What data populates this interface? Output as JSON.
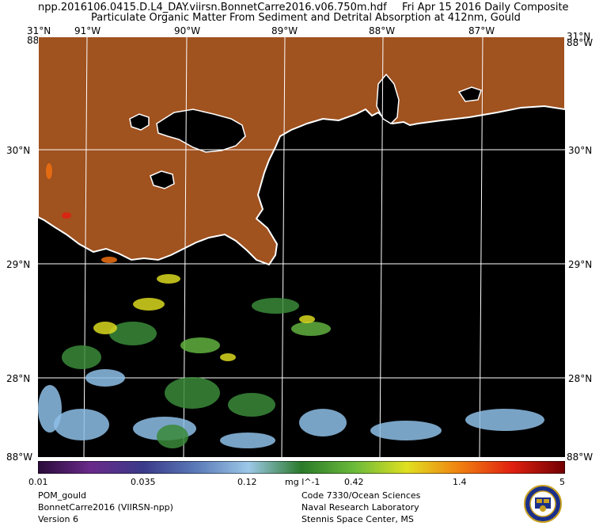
{
  "header": {
    "filename": "npp.2016106.0415.D.L4_DAY.viirsn.BonnetCarre2016.v06.750m.hdf",
    "date": "Fri Apr 15 2016 Daily Composite",
    "product_title": "Particulate Organic Matter From Sediment and Detrital Absorption at 412nm, Gould"
  },
  "map": {
    "top_lon_labels": [
      "91°W",
      "90°W",
      "89°W",
      "88°W",
      "87°W"
    ],
    "corner_top_left_lat": "31°N",
    "corner_top_right_lat": "31°N",
    "corner_top_lon": "88°W",
    "right_lat_labels": [
      "30°N",
      "29°N",
      "28°N"
    ],
    "left_lat_labels": [
      "30°N",
      "29°N",
      "28°N"
    ],
    "bottom_lon": "88°W",
    "land_color": "#a0521f",
    "water_color": "#000000",
    "coast_color": "#ffffff"
  },
  "colorbar": {
    "tick_labels": [
      "0.01",
      "0.035",
      "0.12",
      "mg l^-1",
      "0.42",
      "1.4",
      "5"
    ],
    "colors": [
      "#2a0a3a",
      "#6a2a8a",
      "#3a3a8a",
      "#5a7ab8",
      "#9cc8e8",
      "#2a7a2a",
      "#6aba3a",
      "#e0e020",
      "#f08010",
      "#e02010",
      "#700000"
    ]
  },
  "footer_left": [
    "POM_gould",
    "BonnetCarre2016 (VIIRSN-npp)",
    "Version 6"
  ],
  "footer_right": [
    "Code 7330/Ocean Sciences",
    "Naval Research Laboratory",
    "Stennis Space Center, MS"
  ],
  "seal_icon": "naval-research-laboratory-seal-icon"
}
